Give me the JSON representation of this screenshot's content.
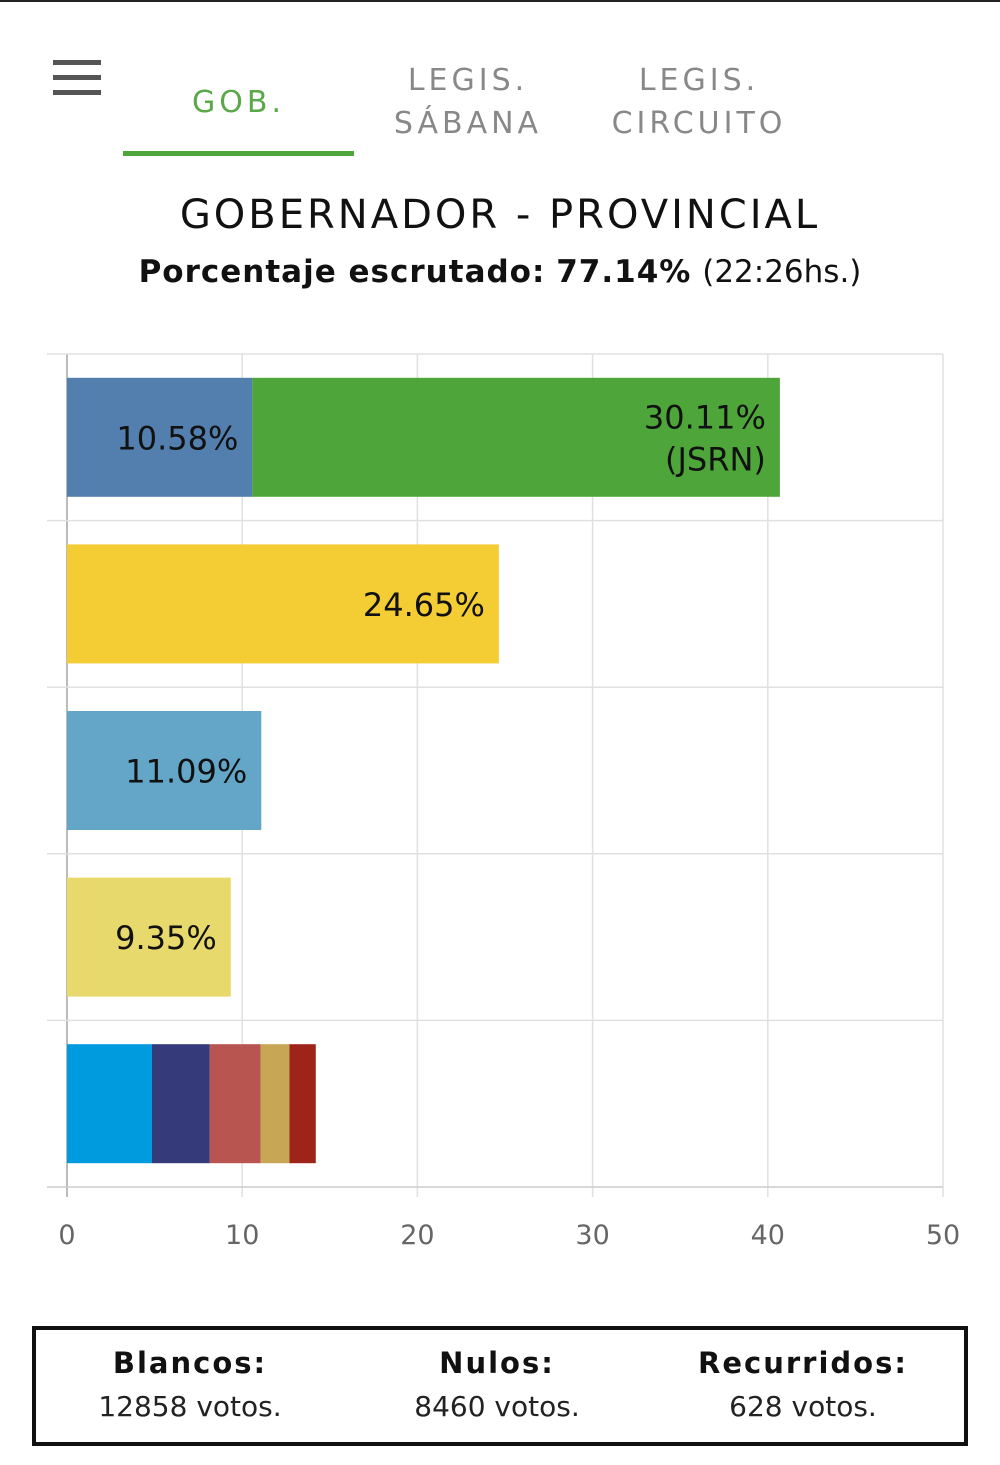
{
  "tabs": [
    {
      "label": "GOB.",
      "active": true
    },
    {
      "label": "LEGIS.\nSÁBANA",
      "active": false
    },
    {
      "label": "LEGIS.\nCIRCUITO",
      "active": false
    }
  ],
  "heading": {
    "title": "GOBERNADOR - PROVINCIAL",
    "progress_label": "Porcentaje escrutado:",
    "progress_value": "77.14%",
    "time": "(22:26hs.)"
  },
  "colors": {
    "accent": "#4ea63a",
    "blue": "#537fae",
    "green": "#4ea63a",
    "yellow": "#f4cc33",
    "lightblue": "#63a6c8",
    "paleyellow": "#e8d96c"
  },
  "chart_data": {
    "type": "bar",
    "orientation": "horizontal",
    "stacked": true,
    "xlim": [
      0,
      50
    ],
    "xticks": [
      0,
      10,
      20,
      30,
      40,
      50
    ],
    "grid": true,
    "rows": [
      {
        "segments": [
          {
            "value": 10.58,
            "label": "10.58%",
            "color": "#537fae"
          },
          {
            "value": 30.11,
            "label": "30.11%\n(JSRN)",
            "color": "#4ea63a"
          }
        ]
      },
      {
        "segments": [
          {
            "value": 24.65,
            "label": "24.65%",
            "color": "#f4cc33"
          }
        ]
      },
      {
        "segments": [
          {
            "value": 11.09,
            "label": "11.09%",
            "color": "#63a6c8"
          }
        ]
      },
      {
        "segments": [
          {
            "value": 9.35,
            "label": "9.35%",
            "color": "#e8d96c"
          }
        ]
      },
      {
        "segments": [
          {
            "value": 4.85,
            "label": "",
            "color": "#009ade"
          },
          {
            "value": 3.3,
            "label": "",
            "color": "#353a7a"
          },
          {
            "value": 2.9,
            "label": "",
            "color": "#b85550"
          },
          {
            "value": 1.65,
            "label": "",
            "color": "#c7a655"
          },
          {
            "value": 1.5,
            "label": "",
            "color": "#9e2318"
          }
        ]
      }
    ]
  },
  "totals": [
    {
      "label": "Blancos:",
      "value": "12858 votos."
    },
    {
      "label": "Nulos:",
      "value": "8460 votos."
    },
    {
      "label": "Recurridos:",
      "value": "628 votos."
    }
  ]
}
